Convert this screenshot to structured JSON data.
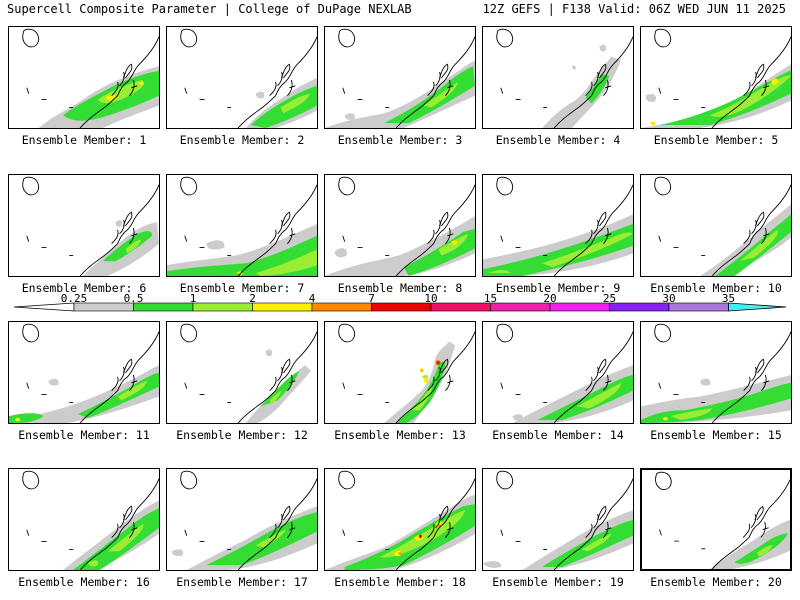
{
  "header": {
    "left": "Supercell Composite Parameter | College of DuPage NEXLAB",
    "right": "12Z GEFS | F138 Valid: 06Z WED JUN 11 2025"
  },
  "colors": {
    "gray": "#cccccc",
    "green": "#33dd33",
    "lightgreen": "#99ee33",
    "yellow": "#ffee00",
    "orange": "#ff8800",
    "red": "#ee0000"
  },
  "legend": {
    "ticks": [
      "0.25",
      "0.5",
      "1",
      "2",
      "4",
      "7",
      "10",
      "15",
      "20",
      "25",
      "30",
      "35"
    ],
    "colors": [
      "#cccccc",
      "#33dd33",
      "#99ee33",
      "#ffee00",
      "#ff8800",
      "#ee0000",
      "#ee1166",
      "#ee22aa",
      "#ee22ee",
      "#8822ee",
      "#aa77dd",
      "#44eeee"
    ]
  },
  "members": [
    {
      "label": "Ensemble Member: 1",
      "max": "yellow"
    },
    {
      "label": "Ensemble Member: 2",
      "max": "lightgreen"
    },
    {
      "label": "Ensemble Member: 3",
      "max": "lightgreen"
    },
    {
      "label": "Ensemble Member: 4",
      "max": "lightgreen"
    },
    {
      "label": "Ensemble Member: 5",
      "max": "yellow"
    },
    {
      "label": "Ensemble Member: 6",
      "max": "lightgreen"
    },
    {
      "label": "Ensemble Member: 7",
      "max": "yellow"
    },
    {
      "label": "Ensemble Member: 8",
      "max": "yellow"
    },
    {
      "label": "Ensemble Member: 9",
      "max": "lightgreen"
    },
    {
      "label": "Ensemble Member: 10",
      "max": "lightgreen"
    },
    {
      "label": "Ensemble Member: 11",
      "max": "yellow"
    },
    {
      "label": "Ensemble Member: 12",
      "max": "lightgreen"
    },
    {
      "label": "Ensemble Member: 13",
      "max": "red"
    },
    {
      "label": "Ensemble Member: 14",
      "max": "lightgreen"
    },
    {
      "label": "Ensemble Member: 15",
      "max": "yellow"
    },
    {
      "label": "Ensemble Member: 16",
      "max": "lightgreen"
    },
    {
      "label": "Ensemble Member: 17",
      "max": "lightgreen"
    },
    {
      "label": "Ensemble Member: 18",
      "max": "red"
    },
    {
      "label": "Ensemble Member: 19",
      "max": "lightgreen"
    },
    {
      "label": "Ensemble Member: 20",
      "max": "lightgreen"
    }
  ]
}
